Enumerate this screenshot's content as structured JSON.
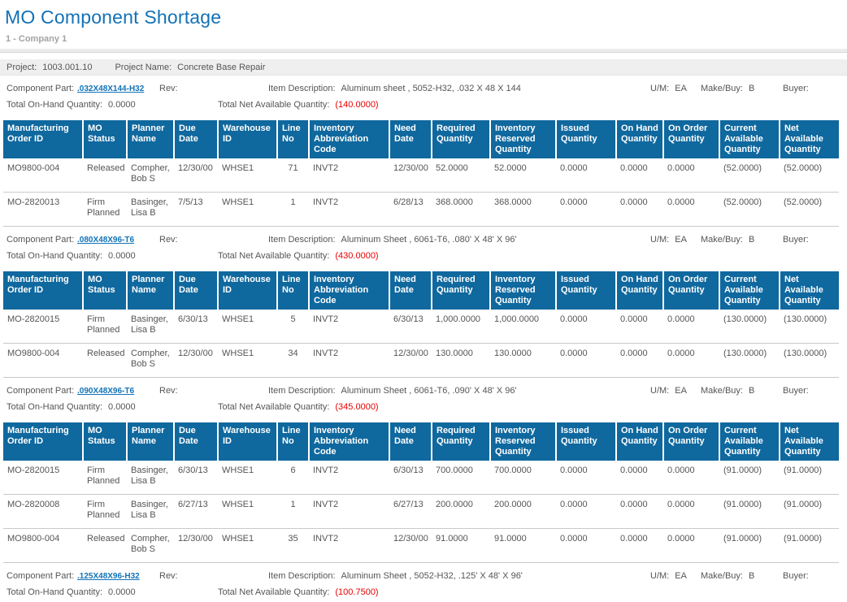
{
  "report": {
    "title": "MO Component Shortage",
    "company": "1 - Company 1",
    "project_label": "Project:",
    "project_value": "1003.001.10",
    "project_name_label": "Project Name:",
    "project_name_value": "Concrete Base Repair"
  },
  "labels": {
    "component_part": "Component Part:",
    "rev": "Rev:",
    "item_description": "Item Description:",
    "um": "U/M:",
    "make_buy": "Make/Buy:",
    "buyer": "Buyer:",
    "total_on_hand": "Total On-Hand Quantity:",
    "total_net_available": "Total Net Available Quantity:"
  },
  "colors": {
    "accent_blue": "#1271b6",
    "table_header_blue": "#0f689e",
    "negative_red": "#e80000"
  },
  "columns": [
    "Manufacturing Order ID",
    "MO Status",
    "Planner Name",
    "Due Date",
    "Warehouse ID",
    "Line No",
    "Inventory Abbreviation Code",
    "Need Date",
    "Required Quantity",
    "Inventory Reserved Quantity",
    "Issued Quantity",
    "On Hand Quantity",
    "On Order Quantity",
    "Current Available Quantity",
    "Net Available Quantity"
  ],
  "sections": [
    {
      "part": ".032X48X144-H32",
      "rev": "",
      "item_description": "Aluminum sheet , 5052-H32, .032 X 48 X 144",
      "um": "EA",
      "make_buy": "B",
      "buyer": "",
      "total_on_hand": "0.0000",
      "total_net_available": "(140.0000)",
      "rows": [
        [
          "MO9800-004",
          "Released",
          "Compher, Bob S",
          "12/30/00",
          "WHSE1",
          "71",
          "INVT2",
          "12/30/00",
          "52.0000",
          "52.0000",
          "0.0000",
          "0.0000",
          "0.0000",
          "(52.0000)",
          "(52.0000)"
        ],
        [
          "MO-2820013",
          "Firm Planned",
          "Basinger, Lisa B",
          "7/5/13",
          "WHSE1",
          "1",
          "INVT2",
          "6/28/13",
          "368.0000",
          "368.0000",
          "0.0000",
          "0.0000",
          "0.0000",
          "(52.0000)",
          "(52.0000)"
        ]
      ]
    },
    {
      "part": ".080X48X96-T6",
      "rev": "",
      "item_description": "Aluminum Sheet , 6061-T6, .080' X 48' X 96'",
      "um": "EA",
      "make_buy": "B",
      "buyer": "",
      "total_on_hand": "0.0000",
      "total_net_available": "(430.0000)",
      "rows": [
        [
          "MO-2820015",
          "Firm Planned",
          "Basinger, Lisa B",
          "6/30/13",
          "WHSE1",
          "5",
          "INVT2",
          "6/30/13",
          "1,000.0000",
          "1,000.0000",
          "0.0000",
          "0.0000",
          "0.0000",
          "(130.0000)",
          "(130.0000)"
        ],
        [
          "MO9800-004",
          "Released",
          "Compher, Bob S",
          "12/30/00",
          "WHSE1",
          "34",
          "INVT2",
          "12/30/00",
          "130.0000",
          "130.0000",
          "0.0000",
          "0.0000",
          "0.0000",
          "(130.0000)",
          "(130.0000)"
        ]
      ]
    },
    {
      "part": ".090X48X96-T6",
      "rev": "",
      "item_description": "Aluminum Sheet , 6061-T6, .090' X 48' X 96'",
      "um": "EA",
      "make_buy": "B",
      "buyer": "",
      "total_on_hand": "0.0000",
      "total_net_available": "(345.0000)",
      "rows": [
        [
          "MO-2820015",
          "Firm Planned",
          "Basinger, Lisa B",
          "6/30/13",
          "WHSE1",
          "6",
          "INVT2",
          "6/30/13",
          "700.0000",
          "700.0000",
          "0.0000",
          "0.0000",
          "0.0000",
          "(91.0000)",
          "(91.0000)"
        ],
        [
          "MO-2820008",
          "Firm Planned",
          "Basinger, Lisa B",
          "6/27/13",
          "WHSE1",
          "1",
          "INVT2",
          "6/27/13",
          "200.0000",
          "200.0000",
          "0.0000",
          "0.0000",
          "0.0000",
          "(91.0000)",
          "(91.0000)"
        ],
        [
          "MO9800-004",
          "Released",
          "Compher, Bob S",
          "12/30/00",
          "WHSE1",
          "35",
          "INVT2",
          "12/30/00",
          "91.0000",
          "91.0000",
          "0.0000",
          "0.0000",
          "0.0000",
          "(91.0000)",
          "(91.0000)"
        ]
      ]
    },
    {
      "part": ".125X48X96-H32",
      "rev": "",
      "item_description": "Aluminum Sheet , 5052-H32, .125' X 48' X 96'",
      "um": "EA",
      "make_buy": "B",
      "buyer": "",
      "total_on_hand": "0.0000",
      "total_net_available": "(100.7500)",
      "rows": []
    }
  ]
}
